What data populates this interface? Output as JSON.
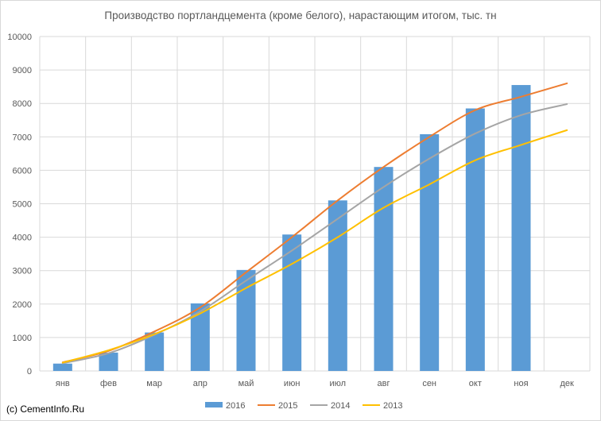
{
  "chart_data": {
    "type": "bar",
    "title": "Производство портландцемента (кроме белого), нарастающим итогом, тыс. тн",
    "categories": [
      "янв",
      "фев",
      "мар",
      "апр",
      "май",
      "июн",
      "июл",
      "авг",
      "сен",
      "окт",
      "ноя",
      "дек"
    ],
    "ylim": [
      0,
      10000
    ],
    "yticks": [
      0,
      1000,
      2000,
      3000,
      4000,
      5000,
      6000,
      7000,
      8000,
      9000,
      10000
    ],
    "grid": true,
    "legend_position": "bottom",
    "series": [
      {
        "name": "2016",
        "type": "bar",
        "color": "#5b9bd5",
        "values": [
          220,
          550,
          1150,
          2020,
          3020,
          4080,
          5100,
          6100,
          7080,
          7850,
          8550,
          null
        ]
      },
      {
        "name": "2015",
        "type": "line",
        "color": "#ed7d31",
        "values": [
          260,
          600,
          1180,
          1900,
          2950,
          4000,
          5100,
          6100,
          7000,
          7800,
          8200,
          8600
        ]
      },
      {
        "name": "2014",
        "type": "line",
        "color": "#a5a5a5",
        "values": [
          230,
          530,
          1080,
          1780,
          2700,
          3600,
          4550,
          5500,
          6350,
          7100,
          7650,
          7980
        ]
      },
      {
        "name": "2013",
        "type": "line",
        "color": "#ffc000",
        "values": [
          250,
          620,
          1100,
          1720,
          2480,
          3200,
          4000,
          4880,
          5580,
          6300,
          6760,
          7200
        ]
      }
    ]
  },
  "credit": "(c) CementInfo.Ru"
}
